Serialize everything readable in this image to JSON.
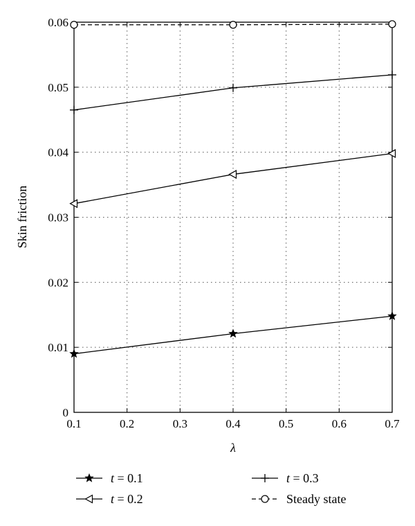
{
  "chart_data": {
    "type": "line",
    "xlabel": "λ",
    "ylabel": "Skin friction",
    "xlim": [
      0.1,
      0.7
    ],
    "ylim": [
      0,
      0.06
    ],
    "x_ticks": [
      0.1,
      0.2,
      0.3,
      0.4,
      0.5,
      0.6,
      0.7
    ],
    "x_tick_labels": [
      "0.1",
      "0.2",
      "0.3",
      "0.4",
      "0.5",
      "0.6",
      "0.7"
    ],
    "y_ticks": [
      0,
      0.01,
      0.02,
      0.03,
      0.04,
      0.05,
      0.06
    ],
    "y_tick_labels": [
      "0",
      "0.01",
      "0.02",
      "0.03",
      "0.04",
      "0.05",
      "0.06"
    ],
    "grid": true,
    "legend_position": "bottom",
    "series": [
      {
        "name": "t = 0.1",
        "legend_var": "t",
        "legend_rest": " = 0.1",
        "marker": "star",
        "dash": "solid",
        "x": [
          0.1,
          0.4,
          0.7
        ],
        "values": [
          0.009,
          0.0121,
          0.0148
        ]
      },
      {
        "name": "t = 0.2",
        "legend_var": "t",
        "legend_rest": " = 0.2",
        "marker": "triangle-left",
        "dash": "solid",
        "x": [
          0.1,
          0.4,
          0.7
        ],
        "values": [
          0.0321,
          0.0366,
          0.0398
        ]
      },
      {
        "name": "t = 0.3",
        "legend_var": "t",
        "legend_rest": " = 0.3",
        "marker": "plus",
        "dash": "solid",
        "x": [
          0.1,
          0.4,
          0.7
        ],
        "values": [
          0.0465,
          0.0499,
          0.0519
        ]
      },
      {
        "name": "Steady state",
        "legend_var": "",
        "legend_rest": "Steady state",
        "marker": "circle",
        "dash": "dashed",
        "x": [
          0.1,
          0.4,
          0.7
        ],
        "values": [
          0.0596,
          0.0596,
          0.0597
        ]
      }
    ]
  }
}
